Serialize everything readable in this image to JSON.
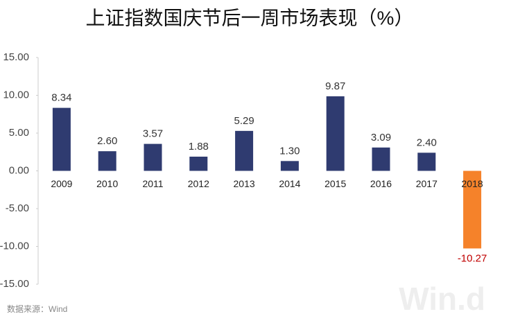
{
  "chart_data": {
    "type": "bar",
    "title": "上证指数国庆节后一周市场表现（%）",
    "categories": [
      "2009",
      "2010",
      "2011",
      "2012",
      "2013",
      "2014",
      "2015",
      "2016",
      "2017",
      "2018"
    ],
    "values": [
      8.34,
      2.6,
      3.57,
      1.88,
      5.29,
      1.3,
      9.87,
      3.09,
      2.4,
      -10.27
    ],
    "value_labels": [
      "8.34",
      "2.60",
      "3.57",
      "1.88",
      "5.29",
      "1.30",
      "9.87",
      "3.09",
      "2.40",
      "-10.27"
    ],
    "colors": [
      "#2f3b70",
      "#2f3b70",
      "#2f3b70",
      "#2f3b70",
      "#2f3b70",
      "#2f3b70",
      "#2f3b70",
      "#2f3b70",
      "#2f3b70",
      "#f5822a"
    ],
    "ylim": [
      -15,
      15
    ],
    "yticks": [
      {
        "value": 15,
        "label": "15.00"
      },
      {
        "value": 10,
        "label": "10.00"
      },
      {
        "value": 5,
        "label": "5.00"
      },
      {
        "value": 0,
        "label": "0.00"
      },
      {
        "value": -5,
        "label": "-5.00"
      },
      {
        "value": -10,
        "label": "-10.00"
      },
      {
        "value": -15,
        "label": "-15.00"
      }
    ],
    "grid": false,
    "source": "数据来源：Wind",
    "watermark": "Win.d"
  }
}
